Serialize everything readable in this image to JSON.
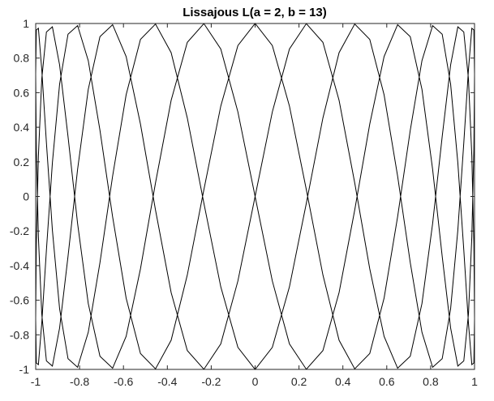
{
  "chart_data": {
    "type": "line",
    "title": "Lissajous L(a = 2, b = 13)",
    "xlabel": "",
    "ylabel": "",
    "xlim": [
      -1,
      1
    ],
    "ylim": [
      -1,
      1
    ],
    "x_ticks": [
      "-1",
      "-0.8",
      "-0.6",
      "-0.4",
      "-0.2",
      "0",
      "0.2",
      "0.4",
      "0.6",
      "0.8",
      "1"
    ],
    "y_ticks": [
      "1",
      "0.8",
      "0.6",
      "0.4",
      "0.2",
      "0",
      "-0.2",
      "-0.4",
      "-0.6",
      "-0.8",
      "-1"
    ],
    "grid": false,
    "params": {
      "a": 2,
      "b": 13
    },
    "series": [
      {
        "color": "#000000"
      }
    ]
  }
}
